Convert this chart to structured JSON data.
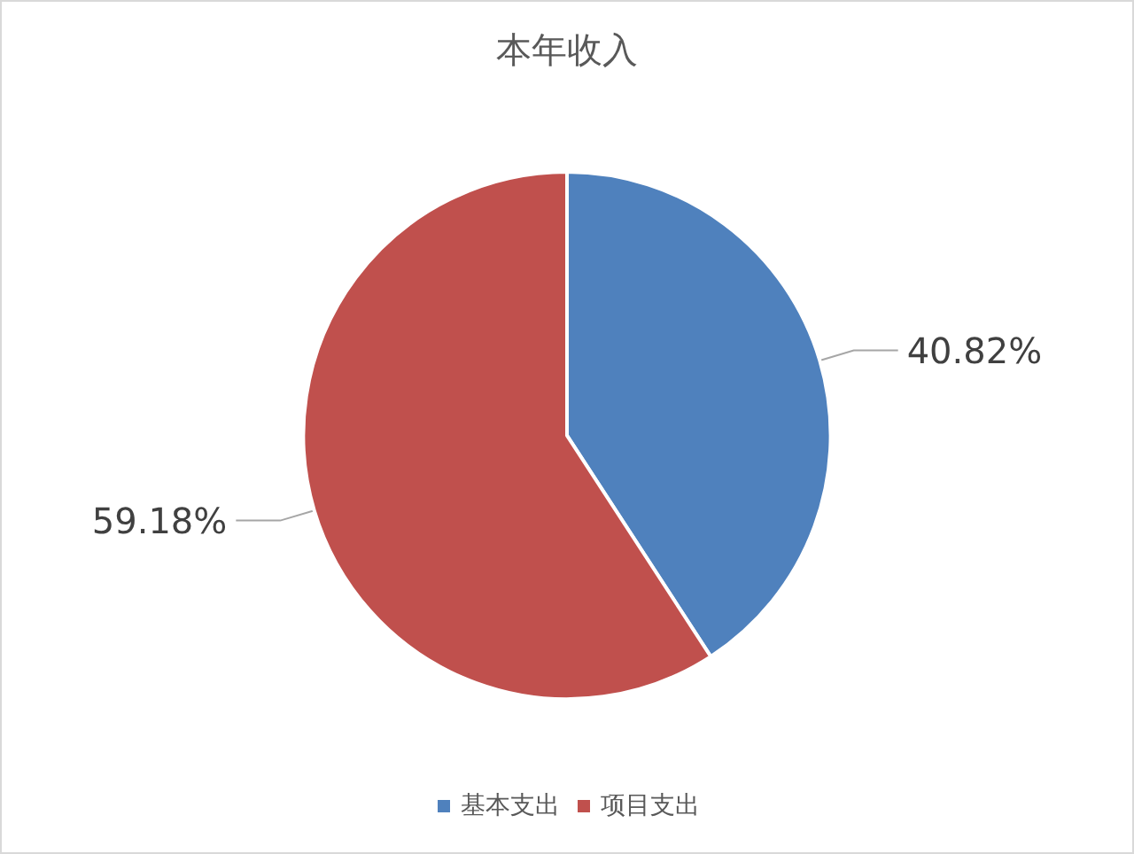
{
  "chart_data": {
    "type": "pie",
    "title": "本年收入",
    "categories": [
      "基本支出",
      "项目支出"
    ],
    "values": [
      40.82,
      59.18
    ],
    "colors": [
      "#4f81bd",
      "#c0504d"
    ],
    "value_labels": [
      "40.82%",
      "59.18%"
    ],
    "legend": "bottom"
  }
}
